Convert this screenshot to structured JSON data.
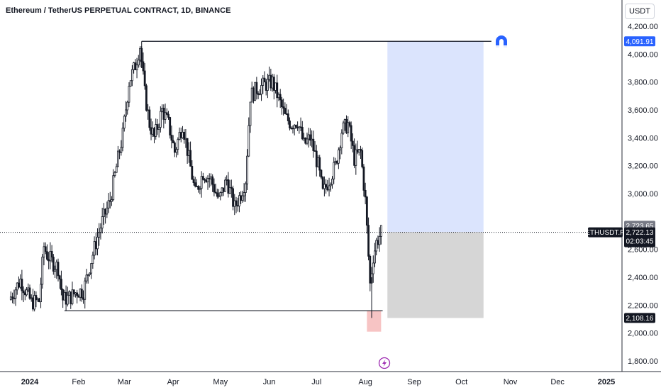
{
  "title": "Ethereum / TetherUS PERPETUAL CONTRACT, 1D, BINANCE",
  "currency": "USDT",
  "colors": {
    "up": "#131722",
    "down": "#131722",
    "target_zone": "#dbe4fd",
    "stop_zone": "#d6d6d6",
    "entry_low_marker": "#f7c4c4",
    "magnet": "#2962ff",
    "lightning": "#9c27b0"
  },
  "price_axis": {
    "min": 1750,
    "max": 4300,
    "ticks": [
      "1,800.00",
      "2,000.00",
      "2,200.00",
      "2,400.00",
      "2,600.00",
      "3,000.00",
      "3,200.00",
      "3,400.00",
      "3,600.00",
      "3,800.00",
      "4,000.00",
      "4,200.00"
    ],
    "tick_values": [
      1800,
      2000,
      2200,
      2400,
      2600,
      3000,
      3200,
      3400,
      3600,
      3800,
      4000,
      4200
    ]
  },
  "time_axis": {
    "labels": [
      "2024",
      "Feb",
      "Mar",
      "Apr",
      "May",
      "Jun",
      "Jul",
      "Aug",
      "Sep",
      "Oct",
      "Nov",
      "Dec",
      "2025"
    ],
    "dates": [
      "2024-01-01",
      "2024-02-01",
      "2024-03-01",
      "2024-04-01",
      "2024-05-01",
      "2024-06-01",
      "2024-07-01",
      "2024-08-01",
      "2024-09-01",
      "2024-10-01",
      "2024-11-01",
      "2024-12-01",
      "2025-01-01"
    ],
    "bold": [
      "2024",
      "2025"
    ]
  },
  "badges": {
    "high": "4,091.91",
    "previous_close": "2,723.65",
    "symbol": "ETHUSDT.P",
    "last": "2,722.13",
    "countdown": "02:03:45",
    "low": "2,108.16"
  },
  "icons": [
    "magnet-icon",
    "lightning-icon"
  ],
  "chart_data": {
    "type": "candlestick",
    "symbol": "ETHUSDT.P",
    "interval": "1D",
    "horizontal_lines": [
      {
        "price": 4091.91,
        "from": "2024-03-12",
        "to": "2024-10-20"
      },
      {
        "price": 2160,
        "from": "2024-01-23",
        "to": "2024-08-12"
      }
    ],
    "position_tool": {
      "entry": 2723.65,
      "target": 4091.91,
      "stop": 2108.16,
      "from": "2024-08-15",
      "to": "2024-10-15"
    },
    "last_price": 2722.13,
    "series": [
      {
        "date": "2023-12-20",
        "close": 2240
      },
      {
        "date": "2023-12-27",
        "close": 2380
      },
      {
        "date": "2024-01-03",
        "close": 2220
      },
      {
        "date": "2024-01-08",
        "close": 2230
      },
      {
        "date": "2024-01-11",
        "close": 2620
      },
      {
        "date": "2024-01-13",
        "close": 2560
      },
      {
        "date": "2024-01-17",
        "close": 2500
      },
      {
        "date": "2024-01-20",
        "close": 2470
      },
      {
        "date": "2024-01-23",
        "close": 2240
      },
      {
        "date": "2024-01-28",
        "close": 2260
      },
      {
        "date": "2024-02-01",
        "close": 2300
      },
      {
        "date": "2024-02-05",
        "close": 2300
      },
      {
        "date": "2024-02-09",
        "close": 2480
      },
      {
        "date": "2024-02-13",
        "close": 2650
      },
      {
        "date": "2024-02-17",
        "close": 2800
      },
      {
        "date": "2024-02-22",
        "close": 2950
      },
      {
        "date": "2024-02-27",
        "close": 3250
      },
      {
        "date": "2024-03-01",
        "close": 3420
      },
      {
        "date": "2024-03-05",
        "close": 3800
      },
      {
        "date": "2024-03-09",
        "close": 3920
      },
      {
        "date": "2024-03-12",
        "close": 4060
      },
      {
        "date": "2024-03-15",
        "close": 3720
      },
      {
        "date": "2024-03-18",
        "close": 3500
      },
      {
        "date": "2024-03-21",
        "close": 3400
      },
      {
        "date": "2024-03-26",
        "close": 3600
      },
      {
        "date": "2024-03-30",
        "close": 3500
      },
      {
        "date": "2024-04-03",
        "close": 3300
      },
      {
        "date": "2024-04-08",
        "close": 3500
      },
      {
        "date": "2024-04-12",
        "close": 3250
      },
      {
        "date": "2024-04-16",
        "close": 3000
      },
      {
        "date": "2024-04-21",
        "close": 3150
      },
      {
        "date": "2024-04-26",
        "close": 3100
      },
      {
        "date": "2024-05-01",
        "close": 2950
      },
      {
        "date": "2024-05-06",
        "close": 3100
      },
      {
        "date": "2024-05-11",
        "close": 2900
      },
      {
        "date": "2024-05-15",
        "close": 3000
      },
      {
        "date": "2024-05-18",
        "close": 3100
      },
      {
        "date": "2024-05-21",
        "close": 3700
      },
      {
        "date": "2024-05-25",
        "close": 3750
      },
      {
        "date": "2024-05-30",
        "close": 3780
      },
      {
        "date": "2024-06-04",
        "close": 3800
      },
      {
        "date": "2024-06-08",
        "close": 3680
      },
      {
        "date": "2024-06-12",
        "close": 3550
      },
      {
        "date": "2024-06-16",
        "close": 3500
      },
      {
        "date": "2024-06-20",
        "close": 3520
      },
      {
        "date": "2024-06-24",
        "close": 3350
      },
      {
        "date": "2024-06-28",
        "close": 3400
      },
      {
        "date": "2024-07-03",
        "close": 3200
      },
      {
        "date": "2024-07-06",
        "close": 3000
      },
      {
        "date": "2024-07-10",
        "close": 3100
      },
      {
        "date": "2024-07-14",
        "close": 3200
      },
      {
        "date": "2024-07-18",
        "close": 3450
      },
      {
        "date": "2024-07-22",
        "close": 3500
      },
      {
        "date": "2024-07-26",
        "close": 3250
      },
      {
        "date": "2024-07-30",
        "close": 3300
      },
      {
        "date": "2024-08-02",
        "close": 2950
      },
      {
        "date": "2024-08-05",
        "close": 2350
      },
      {
        "date": "2024-08-07",
        "close": 2550
      },
      {
        "date": "2024-08-09",
        "close": 2650
      },
      {
        "date": "2024-08-12",
        "close": 2720
      }
    ]
  }
}
